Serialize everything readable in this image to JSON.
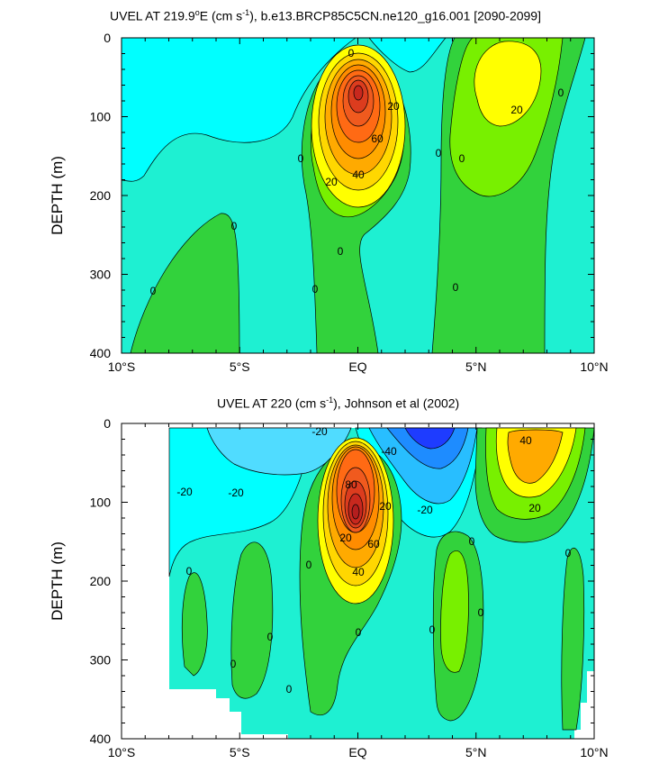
{
  "chart_data": [
    {
      "type": "contour",
      "title_main": "UVEL AT 219.9",
      "title_degree": "o",
      "title_rest": "E (cm s",
      "title_exp": "-1",
      "title_tail": "), b.e13.BRCP85C5CN.ne120_g16.001 [2090-2099]",
      "ylabel": "DEPTH (m)",
      "xlabel": "",
      "x_ticks": [
        "10°S",
        "5°S",
        "EQ",
        "5°N",
        "10°N"
      ],
      "y_ticks": [
        "0",
        "100",
        "200",
        "300",
        "400"
      ],
      "xlim": [
        -10,
        10
      ],
      "ylim": [
        400,
        0
      ],
      "contour_labels": [
        "0",
        "20",
        "60",
        "40",
        "20",
        "0",
        "0",
        "0",
        "20",
        "0",
        "0",
        "0",
        "0",
        "0",
        "0"
      ],
      "colors": {
        "bg": "#1ef0d2",
        "light": "#00ffff",
        "green": "#32d23c",
        "lime": "#78f000",
        "yellow": "#ffff00"
      }
    },
    {
      "type": "contour",
      "title_main": "UVEL AT 220 (cm s",
      "title_exp": "-1",
      "title_tail": "), Johnson et al (2002)",
      "ylabel": "DEPTH (m)",
      "xlabel": "",
      "x_ticks": [
        "10°S",
        "5°S",
        "EQ",
        "5°N",
        "10°N"
      ],
      "y_ticks": [
        "0",
        "100",
        "200",
        "300",
        "400"
      ],
      "xlim": [
        -10,
        10
      ],
      "ylim": [
        400,
        0
      ],
      "contour_labels": [
        "-20",
        "-40",
        "-20",
        "-20",
        "-20",
        "80",
        "20",
        "60",
        "40",
        "20",
        "40",
        "20",
        "0",
        "0",
        "0",
        "0",
        "0",
        "0",
        "0",
        "0",
        "0",
        "0"
      ]
    }
  ]
}
